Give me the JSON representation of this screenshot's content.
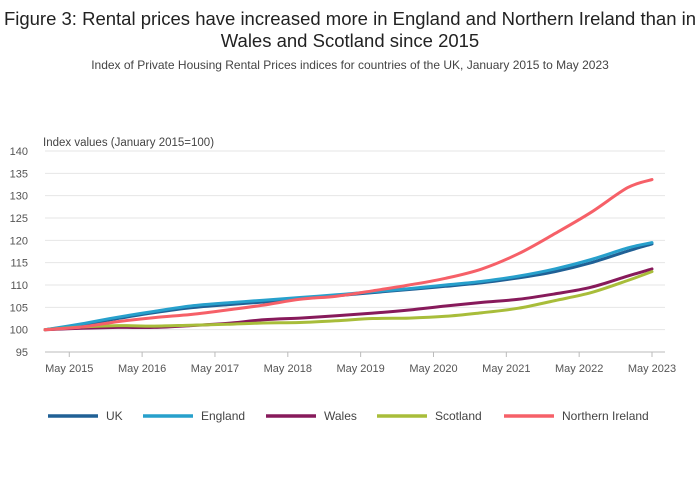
{
  "chart_data": {
    "type": "line",
    "title": "Figure 3: Rental prices have increased more in England and Northern Ireland than in Wales and Scotland since 2015",
    "subtitle": "Index of Private Housing Rental Prices indices for countries of the UK, January 2015 to May 2023",
    "ylabel": "Index values (January 2015=100)",
    "xlabel": "",
    "ylim": [
      95,
      140
    ],
    "yticks": [
      95,
      100,
      105,
      110,
      115,
      120,
      125,
      130,
      135,
      140
    ],
    "xticks": [
      "May 2015",
      "May 2016",
      "May 2017",
      "May 2018",
      "May 2019",
      "May 2020",
      "May 2021",
      "May 2022",
      "May 2023"
    ],
    "grid": "horizontal",
    "legend_position": "bottom",
    "x_points": [
      "Jan 2015",
      "Jul 2015",
      "Jan 2016",
      "Jul 2016",
      "Jan 2017",
      "Jul 2017",
      "Jan 2018",
      "Jul 2018",
      "Jan 2019",
      "Jul 2019",
      "Jan 2020",
      "Jul 2020",
      "Jan 2021",
      "Jul 2021",
      "Jan 2022",
      "Jul 2022",
      "Jan 2023",
      "May 2023"
    ],
    "series": [
      {
        "name": "UK",
        "color": "#206095",
        "values": [
          100,
          101.1,
          102.5,
          103.8,
          104.9,
          105.6,
          106.2,
          106.9,
          107.6,
          108.3,
          109.0,
          109.7,
          110.5,
          111.6,
          113.0,
          115.0,
          117.6,
          119.2
        ]
      },
      {
        "name": "England",
        "color": "#27a0cc",
        "values": [
          100,
          101.3,
          102.8,
          104.1,
          105.3,
          106.0,
          106.6,
          107.2,
          107.8,
          108.5,
          109.2,
          110.0,
          110.8,
          112.0,
          113.6,
          115.7,
          118.3,
          119.5
        ]
      },
      {
        "name": "Wales",
        "color": "#871a5b",
        "values": [
          100,
          100.3,
          100.5,
          100.5,
          100.9,
          101.4,
          102.2,
          102.6,
          103.1,
          103.7,
          104.4,
          105.3,
          106.1,
          106.8,
          108.0,
          109.5,
          112.0,
          113.6
        ]
      },
      {
        "name": "Scotland",
        "color": "#a8bd3a",
        "values": [
          100,
          100.6,
          100.9,
          100.8,
          101.0,
          101.2,
          101.5,
          101.6,
          102.0,
          102.5,
          102.6,
          103.0,
          103.8,
          104.8,
          106.5,
          108.3,
          111.0,
          113.0
        ]
      },
      {
        "name": "Northern Ireland",
        "color": "#f66068",
        "values": [
          100,
          100.6,
          101.8,
          102.7,
          103.4,
          104.4,
          105.5,
          106.8,
          107.5,
          108.7,
          110.0,
          111.5,
          113.6,
          117.0,
          121.5,
          126.3,
          131.8,
          133.6
        ]
      }
    ]
  }
}
